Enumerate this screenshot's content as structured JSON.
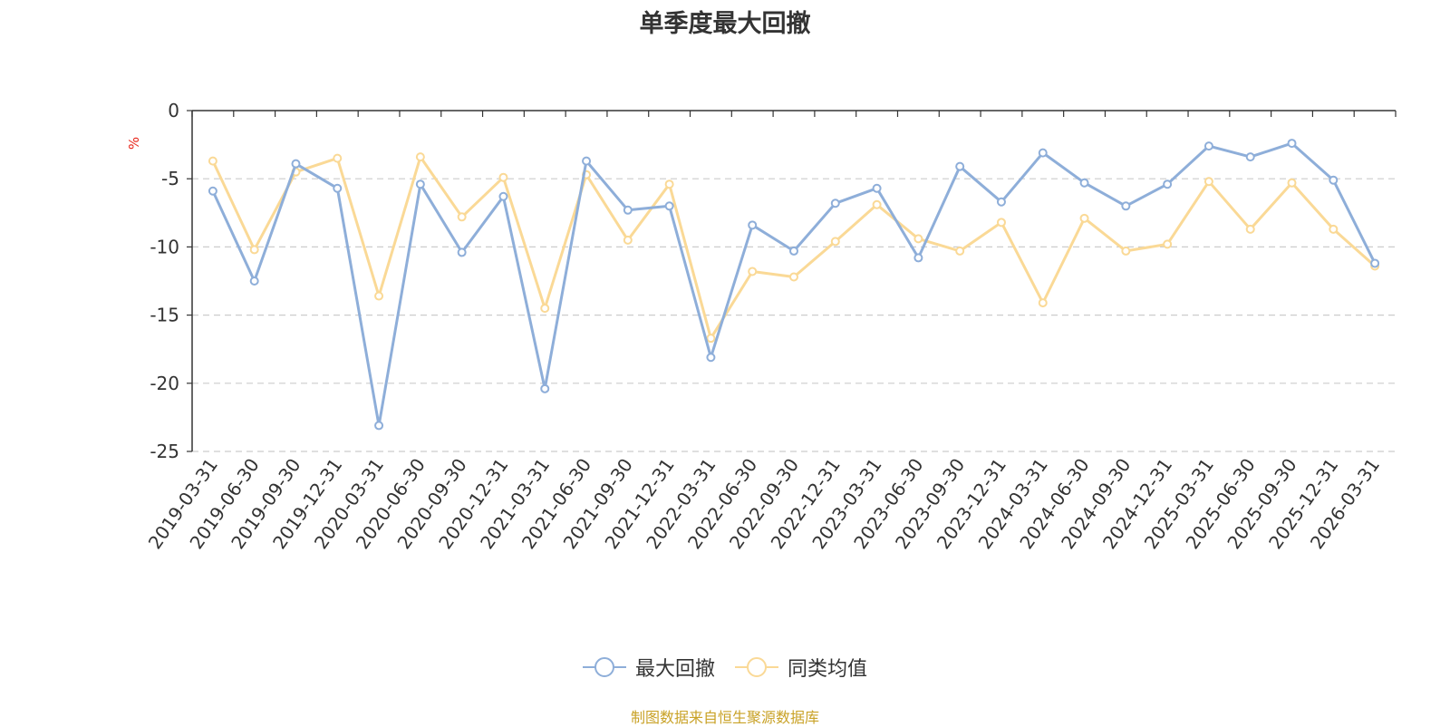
{
  "chart_data": {
    "type": "line",
    "title": "单季度最大回撤",
    "ylabel": "%",
    "ylim": [
      -25,
      0
    ],
    "yticks": [
      0,
      -5,
      -10,
      -15,
      -20,
      -25
    ],
    "grid": true,
    "legend_position": "bottom",
    "categories": [
      "2019-03-31",
      "2019-06-30",
      "2019-09-30",
      "2019-12-31",
      "2020-03-31",
      "2020-06-30",
      "2020-09-30",
      "2020-12-31",
      "2021-03-31",
      "2021-06-30",
      "2021-09-30",
      "2021-12-31",
      "2022-03-31",
      "2022-06-30",
      "2022-09-30",
      "2022-12-31",
      "2023-03-31",
      "2023-06-30",
      "2023-09-30",
      "2023-12-31",
      "2024-03-31",
      "2024-06-30",
      "2024-09-30",
      "2024-12-31",
      "2025-03-31",
      "2025-06-30",
      "2025-09-30",
      "2025-12-31",
      "2026-03-31"
    ],
    "series": [
      {
        "name": "最大回撤",
        "color": "#8eaed9",
        "values": [
          -5.9,
          -12.5,
          -3.9,
          -5.7,
          -23.1,
          -5.4,
          -10.4,
          -6.3,
          -20.4,
          -3.7,
          -7.3,
          -7.0,
          -18.1,
          -8.4,
          -10.3,
          -6.8,
          -5.7,
          -10.8,
          -4.1,
          -6.7,
          -3.1,
          -5.3,
          -7.0,
          -5.4,
          -2.6,
          -3.4,
          -2.4,
          -5.1,
          -11.2
        ]
      },
      {
        "name": "同类均值",
        "color": "#fad996",
        "values": [
          -3.7,
          -10.2,
          -4.5,
          -3.5,
          -13.6,
          -3.4,
          -7.8,
          -4.9,
          -14.5,
          -4.7,
          -9.5,
          -5.4,
          -16.7,
          -11.8,
          -12.2,
          -9.6,
          -6.9,
          -9.4,
          -10.3,
          -8.2,
          -14.1,
          -7.9,
          -10.3,
          -9.8,
          -5.2,
          -8.7,
          -5.3,
          -8.7,
          -11.4
        ]
      }
    ]
  },
  "source": "制图数据来自恒生聚源数据库"
}
